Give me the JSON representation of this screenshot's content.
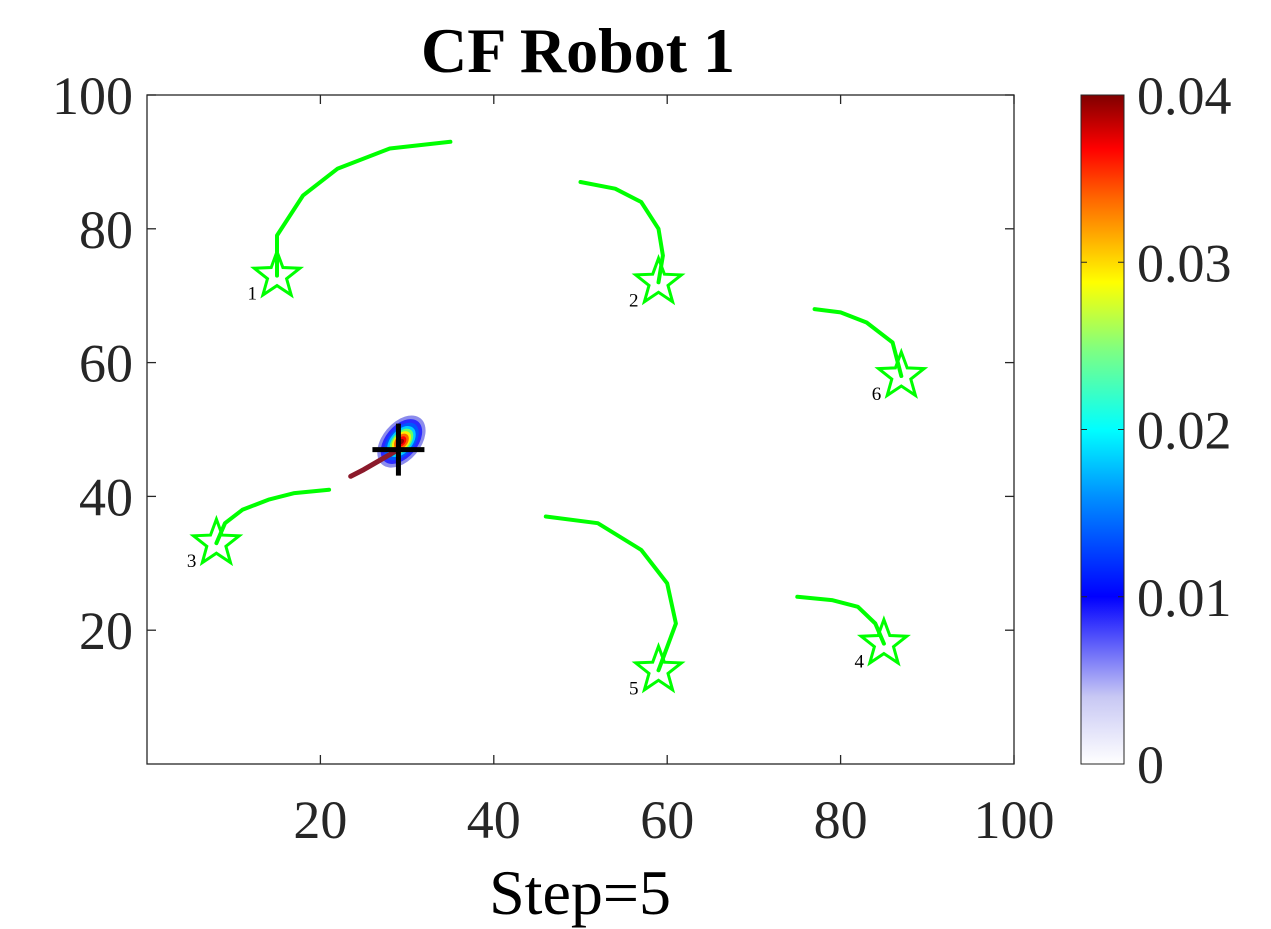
{
  "chart_data": {
    "type": "scatter",
    "title": "CF Robot 1",
    "xlabel": "Step=5",
    "ylabel": "",
    "xlim": [
      0,
      100
    ],
    "ylim": [
      0,
      100
    ],
    "xticks": [
      "20",
      "40",
      "60",
      "80",
      "100"
    ],
    "yticks": [
      "20",
      "40",
      "60",
      "80",
      "100"
    ],
    "grid": false,
    "colorbar": {
      "min": 0,
      "max": 0.04,
      "ticks": [
        "0",
        "0.01",
        "0.02",
        "0.03",
        "0.04"
      ],
      "colormap": "jet-like (white to blue to cyan to green to yellow to red to dark red)"
    },
    "targets": [
      {
        "label": "1",
        "x": 15,
        "y": 73
      },
      {
        "label": "2",
        "x": 59,
        "y": 72
      },
      {
        "label": "3",
        "x": 8,
        "y": 33
      },
      {
        "label": "4",
        "x": 85,
        "y": 18
      },
      {
        "label": "5",
        "x": 59,
        "y": 14
      },
      {
        "label": "6",
        "x": 87,
        "y": 58
      }
    ],
    "target_paths": [
      {
        "x": [
          35,
          28,
          22,
          18,
          15,
          15
        ],
        "y": [
          93,
          92,
          89,
          85,
          79,
          73
        ]
      },
      {
        "x": [
          50,
          54,
          57,
          59,
          59.5,
          59
        ],
        "y": [
          87,
          86,
          84,
          80,
          76,
          72
        ]
      },
      {
        "x": [
          21,
          17,
          14,
          11,
          9,
          8
        ],
        "y": [
          41,
          40.5,
          39.5,
          38,
          36,
          33
        ]
      },
      {
        "x": [
          75,
          79,
          82,
          84,
          85
        ],
        "y": [
          25,
          24.5,
          23.5,
          21,
          18
        ]
      },
      {
        "x": [
          46,
          52,
          57,
          60,
          61,
          59
        ],
        "y": [
          37,
          36,
          32,
          27,
          21,
          14
        ]
      },
      {
        "x": [
          77,
          80,
          83,
          86,
          87
        ],
        "y": [
          68,
          67.5,
          66,
          63,
          58
        ]
      }
    ],
    "robot_path": {
      "x": [
        23.5,
        25,
        27,
        29
      ],
      "y": [
        43,
        44,
        45.5,
        47
      ]
    },
    "robot_position": {
      "x": 29,
      "y": 47
    },
    "density_peak": {
      "x": 29,
      "y": 48.5,
      "max_value": 0.04
    }
  }
}
